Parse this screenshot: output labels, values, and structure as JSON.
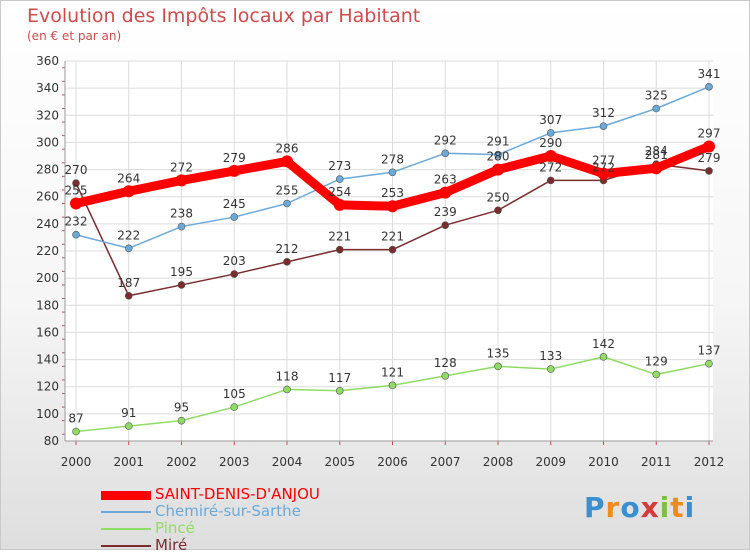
{
  "header": {
    "title": "Evolution des Impôts locaux par Habitant",
    "subtitle": "(en € et par an)"
  },
  "logo": {
    "text": "Proxiti"
  },
  "chart_data": {
    "type": "line",
    "title": "Evolution des Impôts locaux par Habitant",
    "subtitle": "(en € et par an)",
    "xlabel": "",
    "ylabel": "",
    "x": [
      "2000",
      "2001",
      "2002",
      "2003",
      "2004",
      "2005",
      "2006",
      "2007",
      "2008",
      "2009",
      "2010",
      "2011",
      "2012"
    ],
    "ylim": [
      80,
      360
    ],
    "yticks": [
      80,
      100,
      120,
      140,
      160,
      180,
      200,
      220,
      240,
      260,
      280,
      300,
      320,
      340,
      360
    ],
    "grid": true,
    "legend": "bottom-left",
    "series": [
      {
        "name": "SAINT-DENIS-D'ANJOU",
        "color": "#ff0000",
        "values": [
          255,
          264,
          272,
          279,
          286,
          254,
          253,
          263,
          280,
          290,
          277,
          281,
          297
        ]
      },
      {
        "name": "Chemiré-sur-Sarthe",
        "color": "#6aa9da",
        "values": [
          232,
          222,
          238,
          245,
          255,
          273,
          278,
          292,
          291,
          307,
          312,
          325,
          341
        ]
      },
      {
        "name": "Pincé",
        "color": "#8fdc64",
        "values": [
          87,
          91,
          95,
          105,
          118,
          117,
          121,
          128,
          135,
          133,
          142,
          129,
          137
        ]
      },
      {
        "name": "Miré",
        "color": "#7a2c2c",
        "values": [
          270,
          187,
          195,
          203,
          212,
          221,
          221,
          239,
          250,
          272,
          272,
          284,
          279
        ]
      }
    ]
  }
}
